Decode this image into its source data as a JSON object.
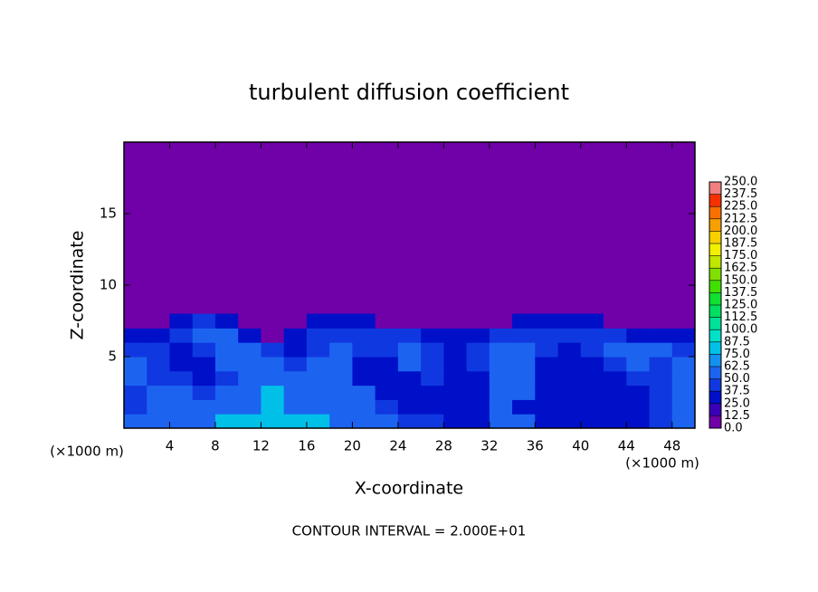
{
  "chart_data": {
    "type": "contour",
    "title": "turbulent diffusion coefficient",
    "xlabel": "X-coordinate",
    "ylabel": "Z-coordinate",
    "x_unit_label": "(×1000 m)",
    "y_unit_label": "(×1000 m)",
    "footer": "CONTOUR INTERVAL = 2.000E+01",
    "xlim": [
      0,
      50
    ],
    "ylim": [
      0,
      20
    ],
    "xticks": [
      4,
      8,
      12,
      16,
      20,
      24,
      28,
      32,
      36,
      40,
      44,
      48
    ],
    "yticks": [
      5,
      10,
      15
    ],
    "background_color": "#7000a8",
    "x": [
      1,
      3,
      5,
      7,
      9,
      11,
      13,
      15,
      17,
      19,
      21,
      23,
      25,
      27,
      29,
      31,
      33,
      35,
      37,
      39,
      41,
      43,
      45,
      47,
      49
    ],
    "y": [
      0.5,
      1.5,
      2.5,
      3.5,
      4.5,
      5.5,
      6.5,
      7.5
    ],
    "z": [
      [
        50,
        50,
        55,
        55,
        75,
        75,
        87,
        87,
        75,
        62,
        50,
        50,
        45,
        40,
        37,
        37,
        50,
        50,
        37,
        37,
        37,
        30,
        37,
        45,
        50
      ],
      [
        45,
        50,
        55,
        50,
        62,
        62,
        75,
        62,
        62,
        50,
        50,
        45,
        37,
        37,
        37,
        37,
        50,
        37,
        37,
        37,
        30,
        30,
        37,
        45,
        50
      ],
      [
        45,
        50,
        50,
        45,
        50,
        62,
        75,
        62,
        50,
        50,
        50,
        37,
        37,
        37,
        37,
        37,
        50,
        50,
        37,
        30,
        30,
        37,
        37,
        45,
        50
      ],
      [
        50,
        45,
        45,
        37,
        45,
        62,
        62,
        50,
        50,
        50,
        37,
        37,
        37,
        45,
        37,
        37,
        50,
        50,
        37,
        30,
        30,
        37,
        45,
        45,
        50
      ],
      [
        50,
        45,
        37,
        37,
        50,
        62,
        50,
        45,
        50,
        50,
        37,
        37,
        50,
        45,
        37,
        45,
        50,
        50,
        37,
        37,
        37,
        45,
        50,
        45,
        50
      ],
      [
        45,
        45,
        37,
        45,
        50,
        50,
        45,
        37,
        45,
        50,
        45,
        45,
        50,
        45,
        37,
        45,
        50,
        50,
        45,
        37,
        45,
        50,
        50,
        50,
        45
      ],
      [
        37,
        37,
        45,
        50,
        50,
        37,
        12,
        37,
        45,
        45,
        45,
        45,
        45,
        37,
        25,
        37,
        45,
        45,
        45,
        45,
        45,
        45,
        37,
        37,
        37
      ],
      [
        12,
        12,
        37,
        45,
        37,
        12,
        0,
        0,
        37,
        37,
        25,
        12,
        12,
        0,
        0,
        0,
        12,
        37,
        37,
        37,
        25,
        12,
        0,
        0,
        12
      ]
    ],
    "colorbar": {
      "levels": [
        {
          "value": 0,
          "label": "0.0"
        },
        {
          "value": 12.5,
          "label": "12.5"
        },
        {
          "value": 25,
          "label": "25.0"
        },
        {
          "value": 37.5,
          "label": "37.5"
        },
        {
          "value": 50,
          "label": "50.0"
        },
        {
          "value": 62.5,
          "label": "62.5"
        },
        {
          "value": 75,
          "label": "75.0"
        },
        {
          "value": 87.5,
          "label": "87.5"
        },
        {
          "value": 100,
          "label": "100.0"
        },
        {
          "value": 112.5,
          "label": "112.5"
        },
        {
          "value": 125,
          "label": "125.0"
        },
        {
          "value": 137.5,
          "label": "137.5"
        },
        {
          "value": 150,
          "label": "150.0"
        },
        {
          "value": 162.5,
          "label": "162.5"
        },
        {
          "value": 175,
          "label": "175.0"
        },
        {
          "value": 187.5,
          "label": "187.5"
        },
        {
          "value": 200,
          "label": "200.0"
        },
        {
          "value": 212.5,
          "label": "212.5"
        },
        {
          "value": 225,
          "label": "225.0"
        },
        {
          "value": 237.5,
          "label": "237.5"
        },
        {
          "value": 250,
          "label": "250.0"
        }
      ],
      "colors": [
        "#7000a8",
        "#3a00b8",
        "#0010c8",
        "#1038e0",
        "#1c64f0",
        "#1490f0",
        "#00c0e8",
        "#00e0c8",
        "#00e098",
        "#00e060",
        "#10e030",
        "#40e000",
        "#80e000",
        "#c0e800",
        "#f0f000",
        "#f8d000",
        "#f8a000",
        "#f87000",
        "#f83000",
        "#f08080"
      ]
    }
  }
}
